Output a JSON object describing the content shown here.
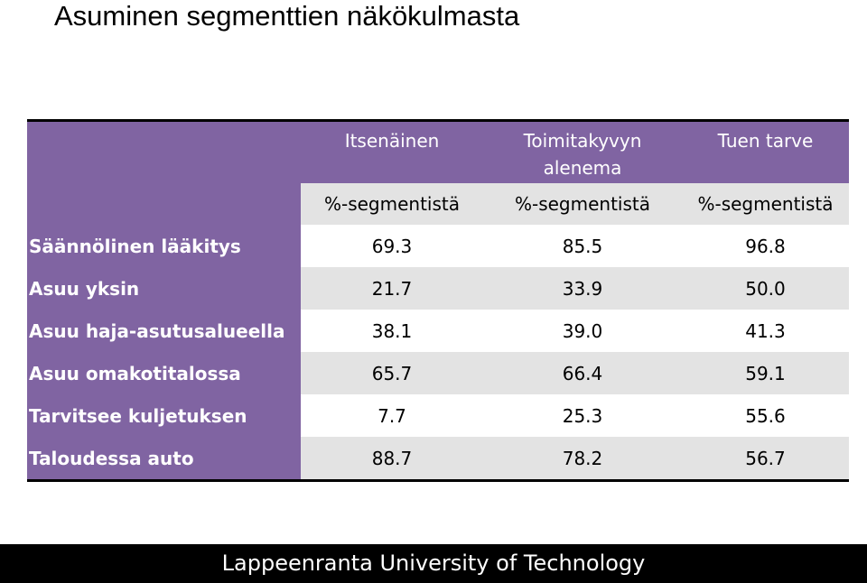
{
  "title": "Asuminen segmenttien näkökulmasta",
  "table": {
    "columns": [
      "Itsenäinen",
      "Toimitakyvyn alenema",
      "Tuen tarve"
    ],
    "column_lines": [
      [
        "Itsenäinen"
      ],
      [
        "Toimitakyvyn",
        "alenema"
      ],
      [
        "Tuen tarve"
      ]
    ],
    "subheader": [
      "%-segmentistä",
      "%-segmentistä",
      "%-segmentistä"
    ],
    "rows": [
      {
        "label": "Säännölinen lääkitys",
        "values": [
          "69.3",
          "85.5",
          "96.8"
        ]
      },
      {
        "label": "Asuu yksin",
        "values": [
          "21.7",
          "33.9",
          "50.0"
        ]
      },
      {
        "label": "Asuu  haja-asutusalueella",
        "values": [
          "38.1",
          "39.0",
          "41.3"
        ]
      },
      {
        "label": "Asuu omakotitalossa",
        "values": [
          "65.7",
          "66.4",
          "59.1"
        ]
      },
      {
        "label": "Tarvitsee  kuljetuksen",
        "values": [
          "7.7",
          "25.3",
          "55.6"
        ]
      },
      {
        "label": "Taloudessa auto",
        "values": [
          "88.7",
          "78.2",
          "56.7"
        ]
      }
    ]
  },
  "footer": "Lappeenranta University of Technology",
  "colors": {
    "header": "#8064a2",
    "band": "#e3e3e3",
    "footer": "#000000"
  }
}
